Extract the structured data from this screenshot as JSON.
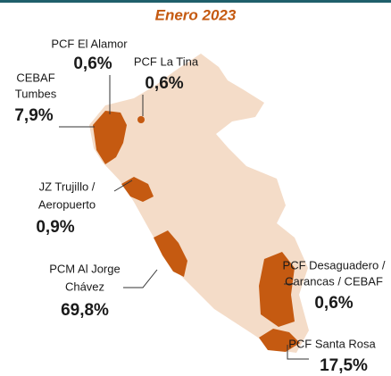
{
  "title": "Enero 2023",
  "regions": [
    {
      "name_lines": [
        "PCF El Alamor"
      ],
      "value": 0.6,
      "value_label": "0,6%"
    },
    {
      "name_lines": [
        "PCF La Tina"
      ],
      "value": 0.6,
      "value_label": "0,6%"
    },
    {
      "name_lines": [
        "CEBAF",
        "Tumbes"
      ],
      "value": 7.9,
      "value_label": "7,9%"
    },
    {
      "name_lines": [
        "JZ Trujillo /",
        "Aeropuerto"
      ],
      "value": 0.9,
      "value_label": "0,9%"
    },
    {
      "name_lines": [
        "PCM Al Jorge",
        "Chávez"
      ],
      "value": 69.8,
      "value_label": "69,8%"
    },
    {
      "name_lines": [
        "PCF Desaguadero /",
        "Carancas / CEBAF"
      ],
      "value": 0.6,
      "value_label": "0,6%"
    },
    {
      "name_lines": [
        "PCF Santa Rosa"
      ],
      "value": 17.5,
      "value_label": "17,5%"
    }
  ]
}
